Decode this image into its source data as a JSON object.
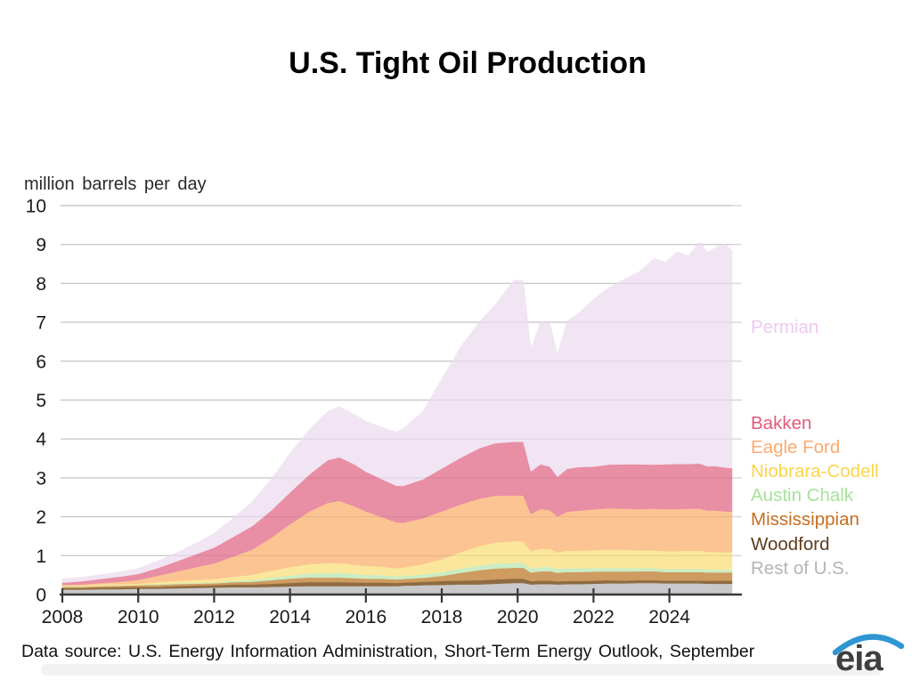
{
  "title": "U.S. Tight Oil Production",
  "y_axis_unit_label": "million barrels per day",
  "footer": {
    "data_source": "Data source: U.S. Energy Information Administration, Short-Term Energy Outlook, September"
  },
  "logo": {
    "text": "eia",
    "swoosh_color": "#2e96d3"
  },
  "colors": {
    "gridline": "#d7d7d7",
    "axis": "#383838",
    "tick_label": "#1a1a1a"
  },
  "chart_data": {
    "type": "area",
    "stacked": true,
    "title": "U.S. Tight Oil Production",
    "xlabel": "",
    "ylabel": "million barrels per day",
    "units": "million barrels per day",
    "ylim": [
      0,
      10
    ],
    "yticks": [
      0,
      1,
      2,
      3,
      4,
      5,
      6,
      7,
      8,
      9,
      10
    ],
    "xticks": [
      2008,
      2010,
      2012,
      2014,
      2016,
      2018,
      2020,
      2022,
      2024
    ],
    "x_range": [
      2008,
      2025.65
    ],
    "grid": "horizontal",
    "legend_position": "right",
    "x": [
      2008,
      2008.5,
      2009,
      2009.5,
      2010,
      2010.5,
      2011,
      2011.5,
      2012,
      2012.5,
      2013,
      2013.5,
      2014,
      2014.5,
      2015,
      2015.3,
      2015.7,
      2016,
      2016.4,
      2016.8,
      2017,
      2017.5,
      2018,
      2018.5,
      2019,
      2019.4,
      2019.9,
      2020.15,
      2020.35,
      2020.6,
      2020.85,
      2021.05,
      2021.3,
      2021.6,
      2022,
      2022.4,
      2022.8,
      2023.2,
      2023.6,
      2023.9,
      2024.2,
      2024.5,
      2024.8,
      2025,
      2025.2,
      2025.45,
      2025.65
    ],
    "series": [
      {
        "name": "rest_of_us",
        "label": "Rest of U.S.",
        "fill": "#c9c9cb",
        "label_color": "#b5b5b8",
        "values": [
          0.13,
          0.13,
          0.14,
          0.14,
          0.15,
          0.15,
          0.16,
          0.17,
          0.18,
          0.19,
          0.19,
          0.2,
          0.21,
          0.22,
          0.22,
          0.22,
          0.22,
          0.22,
          0.22,
          0.22,
          0.23,
          0.24,
          0.25,
          0.26,
          0.26,
          0.28,
          0.3,
          0.3,
          0.26,
          0.27,
          0.27,
          0.26,
          0.27,
          0.27,
          0.28,
          0.29,
          0.29,
          0.3,
          0.3,
          0.29,
          0.29,
          0.29,
          0.29,
          0.28,
          0.28,
          0.28,
          0.28
        ]
      },
      {
        "name": "woodford",
        "label": "Woodford",
        "fill": "#8e6b41",
        "label_color": "#5e3c1d",
        "values": [
          0.04,
          0.04,
          0.04,
          0.05,
          0.05,
          0.05,
          0.06,
          0.06,
          0.06,
          0.07,
          0.07,
          0.08,
          0.09,
          0.1,
          0.1,
          0.1,
          0.09,
          0.09,
          0.09,
          0.08,
          0.08,
          0.09,
          0.1,
          0.1,
          0.11,
          0.11,
          0.11,
          0.11,
          0.09,
          0.09,
          0.09,
          0.08,
          0.08,
          0.08,
          0.08,
          0.08,
          0.07,
          0.07,
          0.07,
          0.07,
          0.07,
          0.07,
          0.07,
          0.08,
          0.08,
          0.08,
          0.08
        ]
      },
      {
        "name": "mississippian",
        "label": "Mississippian",
        "fill": "#ce9b60",
        "label_color": "#c66e20",
        "values": [
          0.03,
          0.03,
          0.04,
          0.04,
          0.04,
          0.05,
          0.05,
          0.05,
          0.05,
          0.06,
          0.07,
          0.09,
          0.11,
          0.12,
          0.12,
          0.12,
          0.11,
          0.1,
          0.1,
          0.09,
          0.09,
          0.1,
          0.13,
          0.2,
          0.26,
          0.28,
          0.28,
          0.28,
          0.22,
          0.24,
          0.24,
          0.22,
          0.23,
          0.23,
          0.23,
          0.23,
          0.23,
          0.23,
          0.23,
          0.22,
          0.22,
          0.22,
          0.22,
          0.21,
          0.21,
          0.21,
          0.21
        ]
      },
      {
        "name": "austin_chalk",
        "label": "Austin Chalk",
        "fill": "#cbedc5",
        "label_color": "#a6e29a",
        "values": [
          0.01,
          0.01,
          0.01,
          0.01,
          0.01,
          0.02,
          0.02,
          0.02,
          0.02,
          0.03,
          0.04,
          0.06,
          0.08,
          0.1,
          0.12,
          0.12,
          0.11,
          0.1,
          0.09,
          0.08,
          0.08,
          0.09,
          0.1,
          0.11,
          0.12,
          0.13,
          0.13,
          0.13,
          0.1,
          0.11,
          0.11,
          0.1,
          0.1,
          0.1,
          0.09,
          0.09,
          0.09,
          0.08,
          0.08,
          0.08,
          0.08,
          0.08,
          0.08,
          0.07,
          0.07,
          0.07,
          0.07
        ]
      },
      {
        "name": "niobrara_codell",
        "label": "Niobrara-Codell",
        "fill": "#fae79b",
        "label_color": "#fbd44c",
        "values": [
          0.02,
          0.02,
          0.03,
          0.03,
          0.03,
          0.05,
          0.06,
          0.08,
          0.09,
          0.11,
          0.14,
          0.18,
          0.22,
          0.24,
          0.25,
          0.25,
          0.24,
          0.23,
          0.22,
          0.21,
          0.22,
          0.26,
          0.33,
          0.42,
          0.5,
          0.54,
          0.55,
          0.55,
          0.45,
          0.47,
          0.46,
          0.43,
          0.45,
          0.45,
          0.46,
          0.47,
          0.47,
          0.46,
          0.46,
          0.46,
          0.46,
          0.47,
          0.47,
          0.46,
          0.46,
          0.45,
          0.45
        ]
      },
      {
        "name": "eagle_ford",
        "label": "Eagle Ford",
        "fill": "#fcc493",
        "label_color": "#fbaa70",
        "values": [
          0.02,
          0.03,
          0.04,
          0.06,
          0.1,
          0.16,
          0.24,
          0.32,
          0.4,
          0.52,
          0.65,
          0.85,
          1.1,
          1.35,
          1.55,
          1.6,
          1.5,
          1.4,
          1.28,
          1.18,
          1.15,
          1.18,
          1.23,
          1.23,
          1.22,
          1.2,
          1.18,
          1.18,
          0.95,
          1.02,
          1.0,
          0.92,
          1.0,
          1.03,
          1.05,
          1.06,
          1.06,
          1.06,
          1.07,
          1.08,
          1.08,
          1.08,
          1.08,
          1.06,
          1.06,
          1.05,
          1.04
        ]
      },
      {
        "name": "bakken",
        "label": "Bakken",
        "fill": "#e88ea5",
        "label_color": "#e25a7a",
        "values": [
          0.06,
          0.08,
          0.1,
          0.13,
          0.15,
          0.2,
          0.26,
          0.33,
          0.41,
          0.5,
          0.6,
          0.7,
          0.82,
          0.95,
          1.1,
          1.12,
          1.08,
          1.02,
          0.98,
          0.94,
          0.95,
          1.0,
          1.1,
          1.2,
          1.3,
          1.35,
          1.38,
          1.38,
          1.1,
          1.15,
          1.12,
          1.02,
          1.1,
          1.12,
          1.1,
          1.12,
          1.14,
          1.15,
          1.13,
          1.15,
          1.16,
          1.15,
          1.16,
          1.14,
          1.15,
          1.13,
          1.12
        ]
      },
      {
        "name": "permian",
        "label": "Permian",
        "fill": "#f1e5f3",
        "label_color": "#eec8ef",
        "values": [
          0.1,
          0.1,
          0.11,
          0.12,
          0.14,
          0.18,
          0.22,
          0.28,
          0.36,
          0.48,
          0.62,
          0.8,
          1.0,
          1.15,
          1.25,
          1.3,
          1.28,
          1.3,
          1.33,
          1.38,
          1.48,
          1.75,
          2.3,
          2.85,
          3.25,
          3.55,
          4.15,
          4.15,
          3.15,
          3.65,
          3.7,
          3.15,
          3.8,
          3.95,
          4.3,
          4.55,
          4.75,
          4.95,
          5.3,
          5.2,
          5.45,
          5.35,
          5.7,
          5.5,
          5.6,
          5.75,
          5.6
        ]
      }
    ]
  }
}
